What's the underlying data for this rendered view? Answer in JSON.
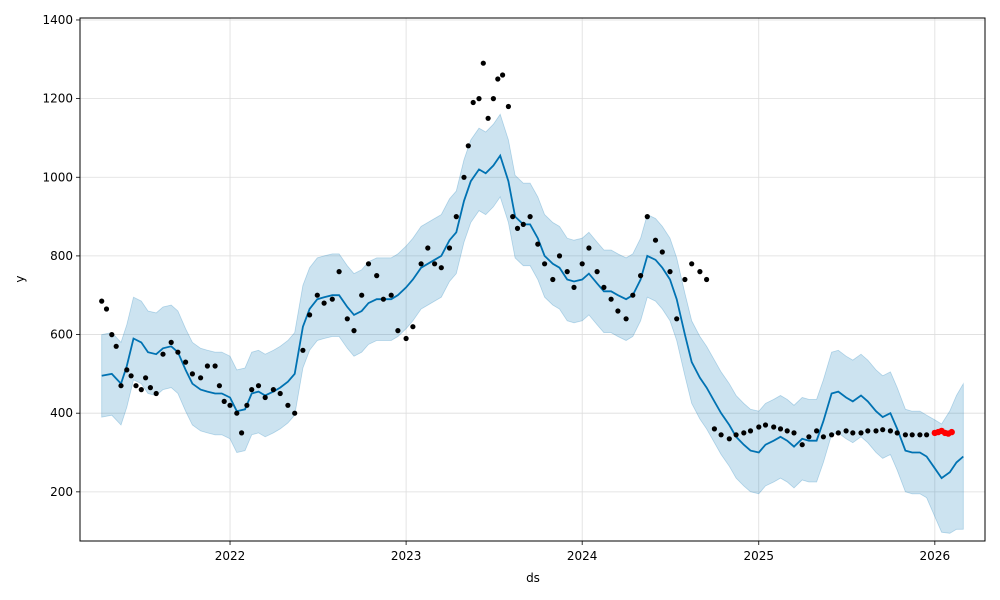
{
  "chart_data": {
    "type": "line",
    "title": "",
    "xlabel": "ds",
    "ylabel": "y",
    "xlim": [
      "2021-02-24",
      "2026-04-15"
    ],
    "ylim": [
      75,
      1405
    ],
    "grid": true,
    "x_ticks": [
      "2022-01-01",
      "2023-01-01",
      "2024-01-01",
      "2025-01-01",
      "2026-01-01"
    ],
    "x_tick_labels": [
      "2022",
      "2023",
      "2024",
      "2025",
      "2026"
    ],
    "y_ticks": [
      200,
      400,
      600,
      800,
      1000,
      1200,
      1400
    ],
    "y_tick_labels": [
      "200",
      "400",
      "600",
      "800",
      "1000",
      "1200",
      "1400"
    ],
    "colors": {
      "forecast_line": "#0072B2",
      "interval_fill": "#0072B2",
      "observed": "#000000",
      "highlighted": "#ff0000",
      "grid": "#dddddd"
    },
    "series": [
      {
        "kind": "observed",
        "points": [
          [
            "2021-04-10",
            685
          ],
          [
            "2021-04-20",
            665
          ],
          [
            "2021-05-01",
            600
          ],
          [
            "2021-05-10",
            570
          ],
          [
            "2021-05-20",
            470
          ],
          [
            "2021-06-01",
            510
          ],
          [
            "2021-06-10",
            495
          ],
          [
            "2021-06-20",
            470
          ],
          [
            "2021-07-01",
            460
          ],
          [
            "2021-07-10",
            490
          ],
          [
            "2021-07-20",
            465
          ],
          [
            "2021-08-01",
            450
          ],
          [
            "2021-08-15",
            550
          ],
          [
            "2021-09-01",
            580
          ],
          [
            "2021-09-15",
            555
          ],
          [
            "2021-10-01",
            530
          ],
          [
            "2021-10-15",
            500
          ],
          [
            "2021-11-01",
            490
          ],
          [
            "2021-11-15",
            520
          ],
          [
            "2021-12-01",
            520
          ],
          [
            "2021-12-10",
            470
          ],
          [
            "2021-12-20",
            430
          ],
          [
            "2022-01-01",
            420
          ],
          [
            "2022-01-15",
            400
          ],
          [
            "2022-01-25",
            350
          ],
          [
            "2022-02-05",
            420
          ],
          [
            "2022-02-15",
            460
          ],
          [
            "2022-03-01",
            470
          ],
          [
            "2022-03-15",
            440
          ],
          [
            "2022-04-01",
            460
          ],
          [
            "2022-04-15",
            450
          ],
          [
            "2022-05-01",
            420
          ],
          [
            "2022-05-15",
            400
          ],
          [
            "2022-06-01",
            560
          ],
          [
            "2022-06-15",
            650
          ],
          [
            "2022-07-01",
            700
          ],
          [
            "2022-07-15",
            680
          ],
          [
            "2022-08-01",
            690
          ],
          [
            "2022-08-15",
            760
          ],
          [
            "2022-09-01",
            640
          ],
          [
            "2022-09-15",
            610
          ],
          [
            "2022-10-01",
            700
          ],
          [
            "2022-10-15",
            780
          ],
          [
            "2022-11-01",
            750
          ],
          [
            "2022-11-15",
            690
          ],
          [
            "2022-12-01",
            700
          ],
          [
            "2022-12-15",
            610
          ],
          [
            "2023-01-01",
            590
          ],
          [
            "2023-01-15",
            620
          ],
          [
            "2023-02-01",
            780
          ],
          [
            "2023-02-15",
            820
          ],
          [
            "2023-03-01",
            780
          ],
          [
            "2023-03-15",
            770
          ],
          [
            "2023-04-01",
            820
          ],
          [
            "2023-04-15",
            900
          ],
          [
            "2023-05-01",
            1000
          ],
          [
            "2023-05-10",
            1080
          ],
          [
            "2023-05-20",
            1190
          ],
          [
            "2023-06-01",
            1200
          ],
          [
            "2023-06-10",
            1290
          ],
          [
            "2023-06-20",
            1150
          ],
          [
            "2023-07-01",
            1200
          ],
          [
            "2023-07-10",
            1250
          ],
          [
            "2023-07-20",
            1260
          ],
          [
            "2023-08-01",
            1180
          ],
          [
            "2023-08-10",
            900
          ],
          [
            "2023-08-20",
            870
          ],
          [
            "2023-09-01",
            880
          ],
          [
            "2023-09-15",
            900
          ],
          [
            "2023-10-01",
            830
          ],
          [
            "2023-10-15",
            780
          ],
          [
            "2023-11-01",
            740
          ],
          [
            "2023-11-15",
            800
          ],
          [
            "2023-12-01",
            760
          ],
          [
            "2023-12-15",
            720
          ],
          [
            "2024-01-01",
            780
          ],
          [
            "2024-01-15",
            820
          ],
          [
            "2024-02-01",
            760
          ],
          [
            "2024-02-15",
            720
          ],
          [
            "2024-03-01",
            690
          ],
          [
            "2024-03-15",
            660
          ],
          [
            "2024-04-01",
            640
          ],
          [
            "2024-04-15",
            700
          ],
          [
            "2024-05-01",
            750
          ],
          [
            "2024-05-15",
            900
          ],
          [
            "2024-06-01",
            840
          ],
          [
            "2024-06-15",
            810
          ],
          [
            "2024-07-01",
            760
          ],
          [
            "2024-07-15",
            640
          ],
          [
            "2024-08-01",
            740
          ],
          [
            "2024-08-15",
            780
          ],
          [
            "2024-09-01",
            760
          ],
          [
            "2024-09-15",
            740
          ],
          [
            "2024-10-01",
            360
          ],
          [
            "2024-10-15",
            345
          ],
          [
            "2024-11-01",
            335
          ],
          [
            "2024-11-15",
            345
          ],
          [
            "2024-12-01",
            350
          ],
          [
            "2024-12-15",
            355
          ],
          [
            "2025-01-01",
            365
          ],
          [
            "2025-01-15",
            370
          ],
          [
            "2025-02-01",
            365
          ],
          [
            "2025-02-15",
            360
          ],
          [
            "2025-03-01",
            355
          ],
          [
            "2025-03-15",
            350
          ],
          [
            "2025-04-01",
            320
          ],
          [
            "2025-04-15",
            340
          ],
          [
            "2025-05-01",
            355
          ],
          [
            "2025-05-15",
            340
          ],
          [
            "2025-06-01",
            345
          ],
          [
            "2025-06-15",
            350
          ],
          [
            "2025-07-01",
            355
          ],
          [
            "2025-07-15",
            350
          ],
          [
            "2025-08-01",
            350
          ],
          [
            "2025-08-15",
            355
          ],
          [
            "2025-09-01",
            355
          ],
          [
            "2025-09-15",
            358
          ],
          [
            "2025-10-01",
            355
          ],
          [
            "2025-10-15",
            350
          ],
          [
            "2025-11-01",
            345
          ],
          [
            "2025-11-15",
            345
          ],
          [
            "2025-12-01",
            345
          ],
          [
            "2025-12-15",
            345
          ]
        ]
      },
      {
        "kind": "highlighted",
        "points": [
          [
            "2026-01-01",
            350
          ],
          [
            "2026-01-08",
            352
          ],
          [
            "2026-01-15",
            355
          ],
          [
            "2026-01-22",
            350
          ],
          [
            "2026-01-29",
            348
          ],
          [
            "2026-02-05",
            352
          ]
        ]
      },
      {
        "kind": "forecast",
        "points": [
          [
            "2021-04-10",
            495
          ],
          [
            "2021-05-01",
            500
          ],
          [
            "2021-05-20",
            475
          ],
          [
            "2021-06-01",
            520
          ],
          [
            "2021-06-15",
            590
          ],
          [
            "2021-07-01",
            580
          ],
          [
            "2021-07-15",
            555
          ],
          [
            "2021-08-01",
            550
          ],
          [
            "2021-08-15",
            565
          ],
          [
            "2021-09-01",
            570
          ],
          [
            "2021-09-15",
            555
          ],
          [
            "2021-10-01",
            510
          ],
          [
            "2021-10-15",
            475
          ],
          [
            "2021-11-01",
            460
          ],
          [
            "2021-11-15",
            455
          ],
          [
            "2021-12-01",
            450
          ],
          [
            "2021-12-15",
            450
          ],
          [
            "2022-01-01",
            440
          ],
          [
            "2022-01-15",
            405
          ],
          [
            "2022-02-01",
            410
          ],
          [
            "2022-02-15",
            450
          ],
          [
            "2022-03-01",
            455
          ],
          [
            "2022-03-15",
            445
          ],
          [
            "2022-04-01",
            455
          ],
          [
            "2022-04-15",
            465
          ],
          [
            "2022-05-01",
            480
          ],
          [
            "2022-05-15",
            500
          ],
          [
            "2022-06-01",
            620
          ],
          [
            "2022-06-15",
            665
          ],
          [
            "2022-07-01",
            690
          ],
          [
            "2022-07-15",
            695
          ],
          [
            "2022-08-01",
            700
          ],
          [
            "2022-08-15",
            700
          ],
          [
            "2022-09-01",
            670
          ],
          [
            "2022-09-15",
            650
          ],
          [
            "2022-10-01",
            660
          ],
          [
            "2022-10-15",
            680
          ],
          [
            "2022-11-01",
            690
          ],
          [
            "2022-11-15",
            690
          ],
          [
            "2022-12-01",
            690
          ],
          [
            "2022-12-15",
            700
          ],
          [
            "2023-01-01",
            720
          ],
          [
            "2023-01-15",
            740
          ],
          [
            "2023-02-01",
            770
          ],
          [
            "2023-02-15",
            780
          ],
          [
            "2023-03-01",
            790
          ],
          [
            "2023-03-15",
            800
          ],
          [
            "2023-04-01",
            840
          ],
          [
            "2023-04-15",
            860
          ],
          [
            "2023-05-01",
            940
          ],
          [
            "2023-05-15",
            990
          ],
          [
            "2023-06-01",
            1020
          ],
          [
            "2023-06-15",
            1010
          ],
          [
            "2023-07-01",
            1030
          ],
          [
            "2023-07-15",
            1055
          ],
          [
            "2023-08-01",
            990
          ],
          [
            "2023-08-15",
            900
          ],
          [
            "2023-09-01",
            880
          ],
          [
            "2023-09-15",
            880
          ],
          [
            "2023-10-01",
            845
          ],
          [
            "2023-10-15",
            800
          ],
          [
            "2023-11-01",
            780
          ],
          [
            "2023-11-15",
            770
          ],
          [
            "2023-12-01",
            740
          ],
          [
            "2023-12-15",
            735
          ],
          [
            "2024-01-01",
            740
          ],
          [
            "2024-01-15",
            755
          ],
          [
            "2024-02-01",
            730
          ],
          [
            "2024-02-15",
            710
          ],
          [
            "2024-03-01",
            710
          ],
          [
            "2024-03-15",
            700
          ],
          [
            "2024-04-01",
            690
          ],
          [
            "2024-04-15",
            700
          ],
          [
            "2024-05-01",
            740
          ],
          [
            "2024-05-15",
            800
          ],
          [
            "2024-06-01",
            790
          ],
          [
            "2024-06-15",
            770
          ],
          [
            "2024-07-01",
            740
          ],
          [
            "2024-07-15",
            690
          ],
          [
            "2024-08-01",
            600
          ],
          [
            "2024-08-15",
            530
          ],
          [
            "2024-09-01",
            490
          ],
          [
            "2024-09-15",
            465
          ],
          [
            "2024-10-01",
            430
          ],
          [
            "2024-10-15",
            400
          ],
          [
            "2024-11-01",
            370
          ],
          [
            "2024-11-15",
            340
          ],
          [
            "2024-12-01",
            320
          ],
          [
            "2024-12-15",
            305
          ],
          [
            "2025-01-01",
            300
          ],
          [
            "2025-01-15",
            320
          ],
          [
            "2025-02-01",
            330
          ],
          [
            "2025-02-15",
            340
          ],
          [
            "2025-03-01",
            330
          ],
          [
            "2025-03-15",
            315
          ],
          [
            "2025-04-01",
            335
          ],
          [
            "2025-04-15",
            330
          ],
          [
            "2025-05-01",
            330
          ],
          [
            "2025-05-15",
            380
          ],
          [
            "2025-06-01",
            450
          ],
          [
            "2025-06-15",
            455
          ],
          [
            "2025-07-01",
            440
          ],
          [
            "2025-07-15",
            430
          ],
          [
            "2025-08-01",
            445
          ],
          [
            "2025-08-15",
            430
          ],
          [
            "2025-09-01",
            405
          ],
          [
            "2025-09-15",
            390
          ],
          [
            "2025-10-01",
            400
          ],
          [
            "2025-10-15",
            360
          ],
          [
            "2025-11-01",
            305
          ],
          [
            "2025-11-15",
            300
          ],
          [
            "2025-12-01",
            300
          ],
          [
            "2025-12-15",
            290
          ],
          [
            "2026-01-01",
            260
          ],
          [
            "2026-01-15",
            235
          ],
          [
            "2026-02-01",
            250
          ],
          [
            "2026-02-15",
            275
          ],
          [
            "2026-03-01",
            290
          ]
        ]
      }
    ]
  }
}
